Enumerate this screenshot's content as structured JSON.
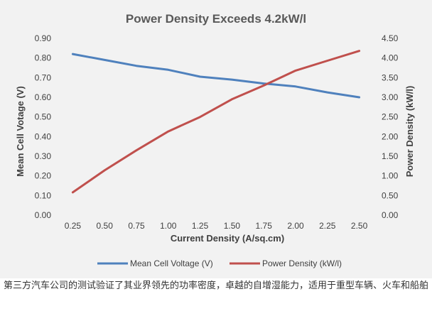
{
  "chart_data": {
    "type": "line",
    "title": "Power Density Exceeds 4.2kW/l",
    "xlabel": "Current Density (A/sq.cm)",
    "ylabel": "Mean Cell Votage (V)",
    "y2label": "Power Density (kW/l)",
    "categories": [
      "0.25",
      "0.50",
      "0.75",
      "1.00",
      "1.25",
      "1.50",
      "1.75",
      "2.00",
      "2.25",
      "2.50"
    ],
    "ylim": [
      0,
      0.9
    ],
    "y_ticks": [
      "0.00",
      "0.10",
      "0.20",
      "0.30",
      "0.40",
      "0.50",
      "0.60",
      "0.70",
      "0.80",
      "0.90"
    ],
    "y2lim": [
      0,
      4.5
    ],
    "y2_ticks": [
      "0.00",
      "0.50",
      "1.00",
      "1.50",
      "2.00",
      "2.50",
      "3.00",
      "3.50",
      "4.00",
      "4.50"
    ],
    "grid": false,
    "legend_position": "bottom",
    "series": [
      {
        "name": "Mean Cell Voltage (V)",
        "axis": "left",
        "color": "#4f81bd",
        "values": [
          0.82,
          0.79,
          0.76,
          0.74,
          0.705,
          0.69,
          0.67,
          0.655,
          0.625,
          0.6
        ]
      },
      {
        "name": "Power Density (kW/l)",
        "axis": "right",
        "color": "#c0504d",
        "values": [
          0.58,
          1.14,
          1.65,
          2.13,
          2.5,
          2.95,
          3.3,
          3.68,
          3.93,
          4.18
        ]
      }
    ]
  },
  "caption": "第三方汽车公司的测试验证了其业界领先的功率密度，卓越的自增湿能力，适用于重型车辆、火车和船舶"
}
